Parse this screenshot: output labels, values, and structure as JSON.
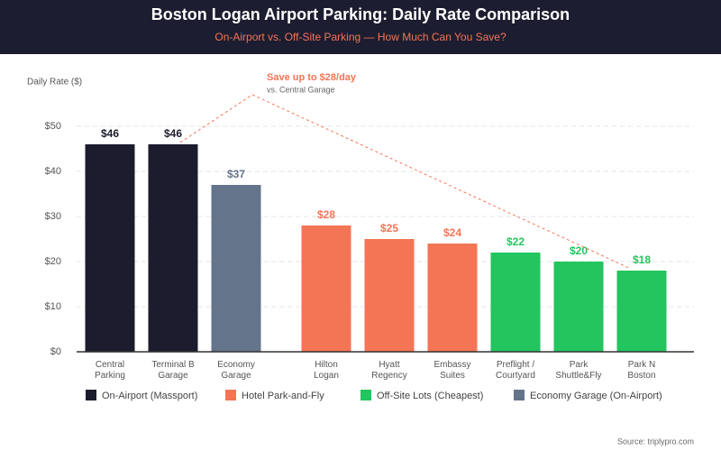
{
  "chart_data": {
    "type": "bar",
    "title": "Boston Logan Airport Parking: Daily Rate Comparison",
    "subtitle": "On-Airport vs. Off-Site Parking — How Much Can You Save?",
    "y_label": "Daily Rate ($)",
    "categories": [
      "Central\nParking",
      "Terminal B\nGarage",
      "Economy\nGarage",
      "Hilton\nLogan",
      "Hyatt\nRegency",
      "Embassy\nSuites",
      "Preflight /\nCourtyard",
      "Park\nShuttle&Fly",
      "Park N\nBoston"
    ],
    "values": [
      46,
      46,
      37,
      28,
      25,
      24,
      22,
      20,
      18
    ],
    "value_labels": [
      "$46",
      "$46",
      "$37",
      "$28",
      "$25",
      "$24",
      "$22",
      "$20",
      "$18"
    ],
    "colors": [
      "#1c1c2e",
      "#1c1c2e",
      "#64748b",
      "#f47555",
      "#f47555",
      "#f47555",
      "#22c55e",
      "#22c55e",
      "#22c55e"
    ],
    "ylim": [
      0,
      60
    ],
    "yticks": [
      {
        "value": 0,
        "label": "$0"
      },
      {
        "value": 10,
        "label": "$10"
      },
      {
        "value": 20,
        "label": "$20"
      },
      {
        "value": 30,
        "label": "$30"
      },
      {
        "value": 40,
        "label": "$40"
      },
      {
        "value": 50,
        "label": "$50"
      }
    ],
    "grid": true,
    "legend": [
      {
        "name": "On-Airport (Massport)",
        "color": "#1c1c2e"
      },
      {
        "name": "Hotel Park-and-Fly",
        "color": "#f47555"
      },
      {
        "name": "Off-Site Lots (Cheapest)",
        "color": "#22c55e"
      },
      {
        "name": "Economy Garage (On-Airport)",
        "color": "#64748b"
      }
    ],
    "annotation": {
      "text": "Save up to $28/day",
      "subtext": "vs. Central Garage"
    },
    "source": "Source: triplypro.com"
  }
}
